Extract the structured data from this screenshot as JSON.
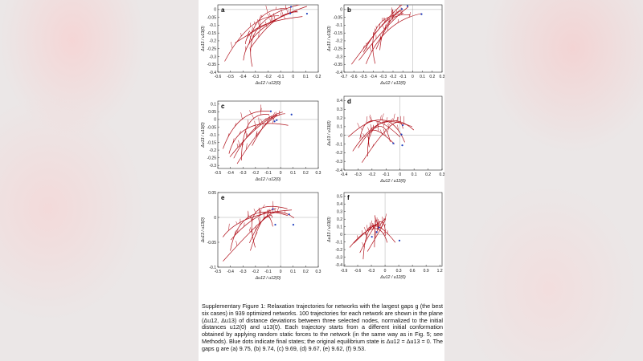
{
  "panels": [
    {
      "label": "a",
      "xlabel": "Δu12 / u12(0)",
      "ylabel": "Δu13 / u13(0)",
      "xticks": [
        "-0.6",
        "-0.5",
        "-0.4",
        "-0.3",
        "-0.2",
        "-0.1",
        "0",
        "0.1",
        "0.2"
      ],
      "yticks": [
        "0",
        "-0.05",
        "-0.1",
        "-0.15",
        "-0.2",
        "-0.25",
        "-0.3",
        "-0.35",
        "-0.4"
      ],
      "xlim": [
        -0.6,
        0.2
      ],
      "ylim": [
        -0.4,
        0.03
      ]
    },
    {
      "label": "b",
      "xlabel": "Δu12 / u12(0)",
      "ylabel": "Δu13 / u13(0)",
      "xticks": [
        "-0.7",
        "-0.6",
        "-0.5",
        "-0.4",
        "-0.3",
        "-0.2",
        "-0.1",
        "0",
        "0.1",
        "0.2",
        "0.3"
      ],
      "yticks": [
        "0",
        "-0.05",
        "-0.1",
        "-0.15",
        "-0.2",
        "-0.25",
        "-0.3",
        "-0.35",
        "-0.4"
      ],
      "xlim": [
        -0.7,
        0.3
      ],
      "ylim": [
        -0.4,
        0.03
      ]
    },
    {
      "label": "c",
      "xlabel": "Δu12 / u12(0)",
      "ylabel": "Δu13 / u13(0)",
      "xticks": [
        "-0.5",
        "-0.4",
        "-0.3",
        "-0.2",
        "-0.1",
        "0",
        "0.1",
        "0.2",
        "0.3"
      ],
      "yticks": [
        "0.1",
        "0.05",
        "0",
        "-0.05",
        "-0.1",
        "-0.15",
        "-0.2",
        "-0.25",
        "-0.3"
      ],
      "xlim": [
        -0.5,
        0.3
      ],
      "ylim": [
        -0.32,
        0.12
      ]
    },
    {
      "label": "d",
      "xlabel": "Δu12 / u12(0)",
      "ylabel": "Δu13 / u13(0)",
      "xticks": [
        "-0.4",
        "-0.3",
        "-0.2",
        "-0.1",
        "0",
        "0.1",
        "0.2",
        "0.3"
      ],
      "yticks": [
        "0.4",
        "0.3",
        "0.2",
        "0.1",
        "0",
        "-0.1",
        "-0.2",
        "-0.3",
        "-0.4"
      ],
      "xlim": [
        -0.4,
        0.3
      ],
      "ylim": [
        -0.4,
        0.45
      ]
    },
    {
      "label": "e",
      "xlabel": "Δu12 / u12(0)",
      "ylabel": "Δu13 / u13(0)",
      "xticks": [
        "-0.5",
        "-0.4",
        "-0.3",
        "-0.2",
        "-0.1",
        "0",
        "0.1",
        "0.2",
        "0.3"
      ],
      "yticks": [
        "0.05",
        "0",
        "-0.05",
        "-0.1"
      ],
      "xlim": [
        -0.5,
        0.3
      ],
      "ylim": [
        -0.1,
        0.05
      ]
    },
    {
      "label": "f",
      "xlabel": "Δu12 / u12(0)",
      "ylabel": "Δu13 / u13(0)",
      "xticks": [
        "-0.9",
        "-0.6",
        "-0.3",
        "0",
        "0.3",
        "0.6",
        "0.9",
        "1.2"
      ],
      "yticks": [
        "0.5",
        "0.4",
        "0.3",
        "0.2",
        "0.1",
        "0",
        "-0.1",
        "-0.2",
        "-0.3",
        "-0.4"
      ],
      "xlim": [
        -0.9,
        1.25
      ],
      "ylim": [
        -0.42,
        0.55
      ]
    }
  ],
  "colors": {
    "trajectory": "#b0101a",
    "endpoint": "#1f3fbf",
    "axis": "#222222"
  },
  "caption": "Supplementary Figure 1: Relaxation trajectories for networks with the largest gaps g (the best six cases) in 939 optimized networks.  100 trajectories for each network are shown in the plane (Δu12, Δu13) of distance deviations between three selected nodes, normalized to the initial distances u12(0) and u13(0).  Each trajectory starts from a different initial conformation obtained by applying random static forces to the network (in the same way as in Fig. 5; see Methods).  Blue dots indicate final states; the original equilibrium state is Δu12 = Δu13 = 0.  The gaps g are (a) 9.75, (b) 9.74, (c) 9.69, (d) 9.67, (e) 9.62, (f) 9.53."
}
